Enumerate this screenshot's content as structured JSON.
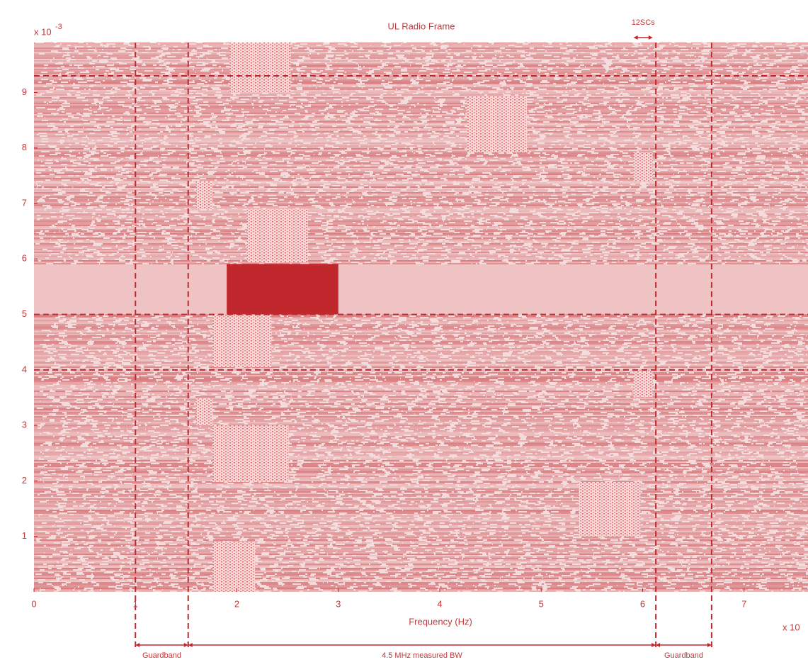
{
  "chart_data": {
    "type": "spectrogram",
    "title": "UL Radio Frame",
    "xlabel": "Frequency (Hz)",
    "y_multiplier": "x 10",
    "y_exponent": "-3",
    "x_multiplier": "x 10",
    "xlim": [
      0,
      7.63
    ],
    "ylim": [
      0,
      9.9
    ],
    "xticks": [
      0,
      1,
      2,
      3,
      4,
      5,
      6,
      7
    ],
    "yticks": [
      1,
      2,
      3,
      4,
      5,
      6,
      7,
      8,
      9
    ],
    "color": "#c0282e",
    "band": {
      "y": [
        5.0,
        5.9
      ]
    },
    "blocks": [
      {
        "x": [
          1.93,
          2.53
        ],
        "y": [
          9.0,
          9.9
        ]
      },
      {
        "x": [
          4.27,
          4.86
        ],
        "y": [
          7.92,
          8.94
        ]
      },
      {
        "x": [
          5.91,
          6.1
        ],
        "y": [
          7.4,
          7.92
        ]
      },
      {
        "x": [
          1.6,
          1.76
        ],
        "y": [
          6.9,
          7.4
        ]
      },
      {
        "x": [
          2.1,
          2.7
        ],
        "y": [
          5.94,
          6.9
        ]
      },
      {
        "x": [
          1.9,
          3.0
        ],
        "y": [
          5.0,
          5.91
        ],
        "dark": true
      },
      {
        "x": [
          1.76,
          2.34
        ],
        "y": [
          4.05,
          5.0
        ]
      },
      {
        "x": [
          5.91,
          6.1
        ],
        "y": [
          3.51,
          4.0
        ]
      },
      {
        "x": [
          1.6,
          1.76
        ],
        "y": [
          3.0,
          3.49
        ]
      },
      {
        "x": [
          1.76,
          2.51
        ],
        "y": [
          1.98,
          3.0
        ]
      },
      {
        "x": [
          5.37,
          5.98
        ],
        "y": [
          1.0,
          1.98
        ]
      },
      {
        "x": [
          1.76,
          2.18
        ],
        "y": [
          0,
          0.9
        ]
      }
    ],
    "vlines": [
      1.0,
      1.52,
      6.13,
      6.68
    ],
    "hlines": [
      9.3,
      5.0,
      4.0
    ],
    "scs_label": "12SCs",
    "scs_span": [
      5.91,
      6.1
    ],
    "spans": [
      {
        "label": "Guardband",
        "x": [
          1.0,
          1.52
        ]
      },
      {
        "label": "4.5 MHz measured BW",
        "x": [
          1.52,
          6.13
        ]
      },
      {
        "label": "Guardband",
        "x": [
          6.13,
          6.68
        ]
      }
    ]
  }
}
